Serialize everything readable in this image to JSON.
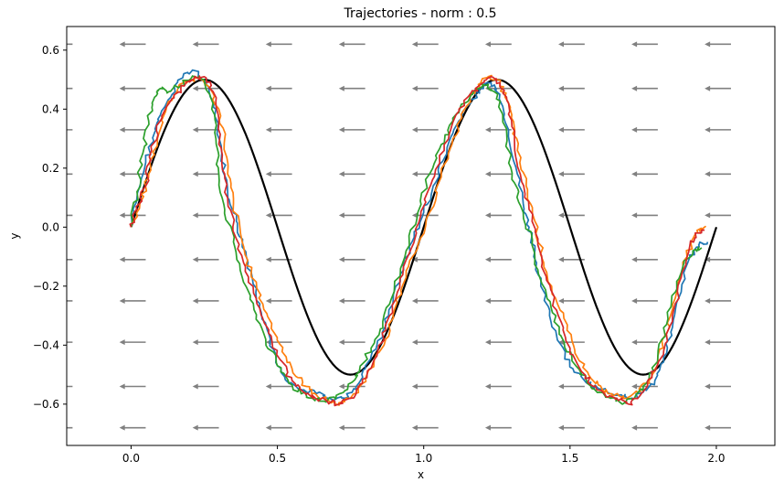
{
  "chart_data": {
    "type": "line",
    "title": "Trajectories - norm : 0.5",
    "xlabel": "x",
    "ylabel": "y",
    "xlim": [
      -0.22,
      2.2
    ],
    "ylim": [
      -0.74,
      0.68
    ],
    "x_ticks": [
      {
        "value": 0.0,
        "label": "0.0"
      },
      {
        "value": 0.5,
        "label": "0.5"
      },
      {
        "value": 1.0,
        "label": "1.0"
      },
      {
        "value": 1.5,
        "label": "1.5"
      },
      {
        "value": 2.0,
        "label": "2.0"
      }
    ],
    "y_ticks": [
      {
        "value": 0.6,
        "label": "0.6"
      },
      {
        "value": 0.4,
        "label": "0.4"
      },
      {
        "value": 0.2,
        "label": "0.2"
      },
      {
        "value": 0.0,
        "label": "0.0"
      },
      {
        "value": -0.2,
        "label": "−0.2"
      },
      {
        "value": -0.4,
        "label": "−0.4"
      },
      {
        "value": -0.6,
        "label": "−0.6"
      }
    ],
    "grid": false,
    "legend": "none",
    "vector_field": {
      "color": "#808080",
      "x": [
        -0.2,
        0.05,
        0.3,
        0.55,
        0.8,
        1.05,
        1.3,
        1.55,
        1.8,
        2.05
      ],
      "y": [
        0.62,
        0.47,
        0.33,
        0.18,
        0.04,
        -0.11,
        -0.25,
        -0.39,
        -0.54,
        -0.68
      ],
      "dx": -0.09,
      "dy": 0.0
    },
    "reference_curve": {
      "color": "#000000",
      "description_x": [
        0.0,
        2.0
      ],
      "amplitude": 0.5,
      "period": 1.0
    },
    "series": [
      {
        "color": "#1f77b4",
        "x": [
          0.0,
          0.02,
          0.05,
          0.08,
          0.1,
          0.14,
          0.18,
          0.22,
          0.26,
          0.29,
          0.31,
          0.33,
          0.36,
          0.38,
          0.41,
          0.44,
          0.47,
          0.5,
          0.54,
          0.58,
          0.63,
          0.68,
          0.73,
          0.77,
          0.8,
          0.84,
          0.88,
          0.92,
          0.96,
          1.0,
          1.04,
          1.08,
          1.12,
          1.16,
          1.19,
          1.23,
          1.26,
          1.29,
          1.32,
          1.34,
          1.36,
          1.38,
          1.4,
          1.43,
          1.47,
          1.51,
          1.56,
          1.61,
          1.66,
          1.71,
          1.75,
          1.79,
          1.82,
          1.85,
          1.88,
          1.91,
          1.94,
          1.97
        ],
        "y": [
          0.0,
          0.1,
          0.22,
          0.32,
          0.38,
          0.45,
          0.52,
          0.53,
          0.48,
          0.4,
          0.25,
          0.12,
          0.02,
          -0.06,
          -0.15,
          -0.26,
          -0.36,
          -0.47,
          -0.53,
          -0.55,
          -0.56,
          -0.58,
          -0.58,
          -0.55,
          -0.48,
          -0.4,
          -0.3,
          -0.16,
          -0.05,
          0.05,
          0.15,
          0.27,
          0.36,
          0.42,
          0.47,
          0.49,
          0.45,
          0.33,
          0.18,
          0.08,
          0.0,
          -0.08,
          -0.2,
          -0.3,
          -0.4,
          -0.48,
          -0.53,
          -0.55,
          -0.57,
          -0.58,
          -0.56,
          -0.52,
          -0.44,
          -0.34,
          -0.22,
          -0.1,
          -0.06,
          -0.05
        ]
      },
      {
        "color": "#ff7f0e",
        "x": [
          0.0,
          0.03,
          0.06,
          0.09,
          0.12,
          0.16,
          0.2,
          0.24,
          0.27,
          0.3,
          0.32,
          0.33,
          0.35,
          0.38,
          0.41,
          0.45,
          0.49,
          0.53,
          0.57,
          0.61,
          0.65,
          0.7,
          0.75,
          0.79,
          0.83,
          0.87,
          0.9,
          0.94,
          0.98,
          1.02,
          1.06,
          1.1,
          1.14,
          1.18,
          1.22,
          1.25,
          1.28,
          1.3,
          1.32,
          1.35,
          1.38,
          1.41,
          1.45,
          1.49,
          1.53,
          1.57,
          1.61,
          1.65,
          1.69,
          1.73,
          1.77,
          1.8,
          1.83,
          1.86,
          1.9,
          1.93,
          1.96
        ],
        "y": [
          0.0,
          0.08,
          0.18,
          0.3,
          0.4,
          0.47,
          0.5,
          0.5,
          0.47,
          0.4,
          0.3,
          0.18,
          0.08,
          -0.05,
          -0.16,
          -0.26,
          -0.36,
          -0.44,
          -0.51,
          -0.55,
          -0.58,
          -0.6,
          -0.58,
          -0.53,
          -0.46,
          -0.38,
          -0.28,
          -0.17,
          -0.06,
          0.05,
          0.17,
          0.3,
          0.4,
          0.47,
          0.51,
          0.5,
          0.45,
          0.37,
          0.26,
          0.14,
          0.02,
          -0.12,
          -0.24,
          -0.35,
          -0.45,
          -0.51,
          -0.55,
          -0.57,
          -0.58,
          -0.56,
          -0.52,
          -0.45,
          -0.36,
          -0.24,
          -0.1,
          -0.02,
          0.0
        ]
      },
      {
        "color": "#2ca02c",
        "x": [
          0.0,
          0.02,
          0.04,
          0.06,
          0.08,
          0.1,
          0.13,
          0.17,
          0.21,
          0.25,
          0.28,
          0.29,
          0.3,
          0.32,
          0.35,
          0.38,
          0.42,
          0.46,
          0.5,
          0.54,
          0.58,
          0.62,
          0.66,
          0.7,
          0.74,
          0.78,
          0.82,
          0.86,
          0.9,
          0.94,
          0.98,
          1.02,
          1.06,
          1.1,
          1.14,
          1.18,
          1.21,
          1.24,
          1.27,
          1.29,
          1.31,
          1.34,
          1.37,
          1.4,
          1.44,
          1.48,
          1.52,
          1.56,
          1.6,
          1.64,
          1.68,
          1.72,
          1.76,
          1.8,
          1.83,
          1.86,
          1.89,
          1.92,
          1.95
        ],
        "y": [
          0.0,
          0.12,
          0.25,
          0.36,
          0.44,
          0.47,
          0.46,
          0.48,
          0.51,
          0.5,
          0.42,
          0.3,
          0.18,
          0.06,
          -0.05,
          -0.17,
          -0.28,
          -0.38,
          -0.47,
          -0.53,
          -0.56,
          -0.58,
          -0.59,
          -0.58,
          -0.55,
          -0.49,
          -0.41,
          -0.32,
          -0.2,
          -0.08,
          0.05,
          0.18,
          0.28,
          0.36,
          0.42,
          0.47,
          0.48,
          0.46,
          0.38,
          0.26,
          0.15,
          0.05,
          -0.06,
          -0.18,
          -0.29,
          -0.39,
          -0.47,
          -0.53,
          -0.56,
          -0.58,
          -0.6,
          -0.58,
          -0.53,
          -0.44,
          -0.33,
          -0.22,
          -0.12,
          -0.08,
          -0.07
        ]
      },
      {
        "color": "#d62728",
        "x": [
          0.0,
          0.02,
          0.05,
          0.07,
          0.1,
          0.13,
          0.17,
          0.21,
          0.25,
          0.28,
          0.3,
          0.31,
          0.33,
          0.36,
          0.39,
          0.43,
          0.47,
          0.51,
          0.55,
          0.59,
          0.63,
          0.67,
          0.71,
          0.75,
          0.79,
          0.83,
          0.87,
          0.91,
          0.95,
          0.99,
          1.03,
          1.07,
          1.11,
          1.15,
          1.19,
          1.23,
          1.26,
          1.29,
          1.31,
          1.33,
          1.36,
          1.39,
          1.42,
          1.46,
          1.5,
          1.54,
          1.58,
          1.62,
          1.66,
          1.7,
          1.74,
          1.78,
          1.82,
          1.85,
          1.88,
          1.91,
          1.94,
          1.96
        ],
        "y": [
          0.0,
          0.06,
          0.14,
          0.26,
          0.36,
          0.42,
          0.47,
          0.5,
          0.51,
          0.46,
          0.35,
          0.22,
          0.1,
          -0.04,
          -0.15,
          -0.26,
          -0.36,
          -0.45,
          -0.52,
          -0.56,
          -0.58,
          -0.59,
          -0.6,
          -0.58,
          -0.53,
          -0.45,
          -0.35,
          -0.22,
          -0.09,
          0.04,
          0.16,
          0.28,
          0.38,
          0.44,
          0.48,
          0.51,
          0.49,
          0.42,
          0.3,
          0.18,
          0.06,
          -0.06,
          -0.18,
          -0.3,
          -0.41,
          -0.49,
          -0.54,
          -0.57,
          -0.58,
          -0.6,
          -0.57,
          -0.51,
          -0.42,
          -0.3,
          -0.17,
          -0.06,
          -0.02,
          -0.01
        ]
      }
    ]
  }
}
